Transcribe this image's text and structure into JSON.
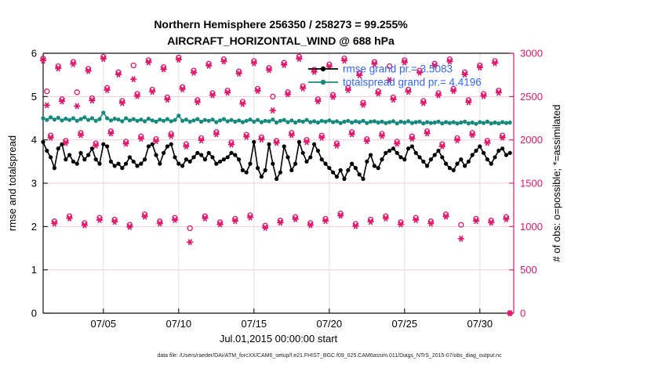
{
  "header": {
    "title_line1": "Northern Hemisphere 256350 / 258273 = 99.255%",
    "title_line2": "AIRCRAFT_HORIZONTAL_WIND @ 688 hPa"
  },
  "footer": {
    "data_file_note": "data file: /Users/raeder/DAI/ATM_forcXX/CAM6_setup/f.e21.FHIST_BGC.f09_025.CAM6assim.011/Diags_NTrS_2015-07/obs_diag_output.nc"
  },
  "colors": {
    "obs_magenta": "#e3146a",
    "spread_teal": "#148a7e",
    "rmse_black": "#000000",
    "legend_text_blue": "#3366ff",
    "grid_vertical": "#dedede",
    "grid_horizontal": "#f4cbd7",
    "axis_black": "#111111"
  },
  "chart_data": {
    "type": "line",
    "title": "Northern Hemisphere 256350 / 258273 = 99.255%",
    "subtitle": "AIRCRAFT_HORIZONTAL_WIND @ 688 hPa",
    "xlabel": "Jul.01,2015 00:00:00 start",
    "ylabel_left": "rmse and totalspread",
    "ylabel_right": "# of obs: o=possible; *=assimilated",
    "ylim_left": [
      0,
      6
    ],
    "ylim_right": [
      0,
      3000
    ],
    "yticks_left": [
      "0",
      "1",
      "2",
      "3",
      "4",
      "5",
      "6"
    ],
    "yticks_left_values": [
      0,
      1,
      2,
      3,
      4,
      5,
      6
    ],
    "yticks_right": [
      "0",
      "500",
      "1000",
      "1500",
      "2000",
      "2500",
      "3000"
    ],
    "yticks_right_values": [
      0,
      500,
      1000,
      1500,
      2000,
      2500,
      3000
    ],
    "xtick_labels": [
      "07/05",
      "07/10",
      "07/15",
      "07/20",
      "07/25",
      "07/30"
    ],
    "xtick_days": [
      5,
      10,
      15,
      20,
      25,
      30
    ],
    "x_range_days": [
      1,
      32.25
    ],
    "x_start_day": 1,
    "x_step_days": 0.25,
    "grid": true,
    "legend_position": "upper-right-inside",
    "legend": [
      {
        "series": "rmse",
        "label": "rmse grand pr.= 3.5083"
      },
      {
        "series": "totalspread",
        "label": "totalspread grand pr.= 4.4196"
      }
    ],
    "series": [
      {
        "name": "rmse",
        "axis": "left",
        "marker": "dot",
        "line": true,
        "values": [
          3.95,
          3.75,
          3.6,
          3.35,
          3.8,
          3.9,
          3.55,
          3.65,
          3.5,
          3.45,
          3.7,
          3.55,
          3.65,
          3.8,
          3.55,
          3.45,
          3.9,
          3.85,
          3.5,
          3.4,
          3.45,
          3.35,
          3.45,
          3.6,
          3.5,
          3.4,
          3.45,
          3.55,
          3.85,
          3.9,
          3.65,
          3.45,
          3.7,
          3.85,
          3.9,
          3.6,
          3.45,
          3.4,
          3.55,
          3.5,
          3.6,
          3.7,
          3.65,
          3.55,
          3.7,
          3.6,
          3.45,
          3.5,
          3.55,
          3.6,
          3.7,
          3.65,
          3.55,
          3.3,
          3.25,
          3.45,
          3.95,
          3.35,
          3.15,
          3.3,
          3.9,
          3.45,
          3.1,
          3.25,
          3.85,
          3.6,
          3.3,
          3.45,
          3.95,
          3.7,
          3.5,
          3.6,
          3.9,
          3.75,
          3.55,
          3.45,
          3.35,
          3.25,
          3.15,
          3.3,
          3.1,
          3.3,
          3.45,
          3.35,
          3.2,
          3.1,
          3.5,
          3.65,
          3.4,
          3.35,
          3.55,
          3.7,
          3.75,
          3.8,
          3.7,
          3.6,
          3.55,
          3.8,
          3.85,
          3.7,
          3.6,
          3.5,
          3.4,
          3.55,
          3.65,
          3.75,
          3.6,
          3.45,
          3.35,
          3.3,
          3.45,
          3.55,
          3.4,
          3.5,
          3.65,
          3.75,
          3.85,
          3.7,
          3.55,
          3.45,
          3.6,
          3.75,
          3.8,
          3.65,
          3.7
        ]
      },
      {
        "name": "totalspread",
        "axis": "left",
        "marker": "dot",
        "line": true,
        "values": [
          4.5,
          4.46,
          4.52,
          4.47,
          4.51,
          4.45,
          4.49,
          4.46,
          4.5,
          4.44,
          4.48,
          4.52,
          4.46,
          4.5,
          4.44,
          4.48,
          4.63,
          4.5,
          4.45,
          4.49,
          4.47,
          4.43,
          4.5,
          4.45,
          4.48,
          4.44,
          4.47,
          4.43,
          4.49,
          4.45,
          4.42,
          4.47,
          4.44,
          4.48,
          4.43,
          4.46,
          4.56,
          4.44,
          4.47,
          4.42,
          4.45,
          4.48,
          4.42,
          4.46,
          4.44,
          4.47,
          4.41,
          4.45,
          4.48,
          4.43,
          4.46,
          4.42,
          4.45,
          4.41,
          4.44,
          4.47,
          4.42,
          4.46,
          4.41,
          4.44,
          4.43,
          4.47,
          4.4,
          4.44,
          4.46,
          4.41,
          4.45,
          4.4,
          4.44,
          4.42,
          4.46,
          4.41,
          4.43,
          4.4,
          4.44,
          4.42,
          4.45,
          4.41,
          4.43,
          4.39,
          4.42,
          4.44,
          4.4,
          4.43,
          4.41,
          4.44,
          4.39,
          4.42,
          4.43,
          4.4,
          4.42,
          4.39,
          4.41,
          4.43,
          4.38,
          4.42,
          4.4,
          4.43,
          4.39,
          4.41,
          4.42,
          4.38,
          4.41,
          4.39,
          4.4,
          4.42,
          4.38,
          4.41,
          4.39,
          4.41,
          4.38,
          4.4,
          4.42,
          4.38,
          4.4,
          4.37,
          4.41,
          4.39,
          4.42,
          4.38,
          4.4,
          4.38,
          4.41,
          4.39,
          4.4
        ]
      },
      {
        "name": "possible",
        "axis": "right",
        "marker": "circle",
        "line": false,
        "values": [
          2940,
          2560,
          2050,
          1060,
          2850,
          2470,
          1990,
          1120,
          2900,
          2550,
          2080,
          1040,
          2820,
          2480,
          1960,
          1100,
          2960,
          2600,
          2100,
          1080,
          2780,
          2450,
          1980,
          1020,
          2860,
          2530,
          2040,
          1140,
          2920,
          2580,
          2010,
          1060,
          2840,
          2490,
          2070,
          1100,
          2950,
          2610,
          1950,
          980,
          2800,
          2460,
          2020,
          1120,
          2880,
          2540,
          2090,
          1050,
          2930,
          2570,
          1970,
          1090,
          2790,
          2440,
          2060,
          1130,
          2910,
          2590,
          2030,
          1010,
          2830,
          2500,
          1990,
          1070,
          2890,
          2550,
          2080,
          1110,
          2960,
          2620,
          2000,
          1040,
          2810,
          2470,
          2050,
          1090,
          2870,
          2520,
          1960,
          1150,
          2940,
          2600,
          2090,
          1030,
          2770,
          2430,
          2010,
          1080,
          2900,
          2560,
          2070,
          1120,
          2850,
          2490,
          1980,
          1050,
          2920,
          2580,
          2040,
          1100,
          2800,
          2450,
          2100,
          1060,
          2880,
          2540,
          1950,
          1140,
          2930,
          2590,
          2020,
          1020,
          2780,
          2460,
          2080,
          1090,
          2860,
          2530,
          1990,
          1070,
          2910,
          2570,
          2050,
          1110,
          0
        ]
      },
      {
        "name": "assimilated",
        "axis": "right",
        "marker": "asterisk",
        "line": false,
        "values": [
          2915,
          2400,
          2025,
          1035,
          2825,
          2445,
          1965,
          1095,
          2875,
          2390,
          2055,
          1015,
          2795,
          2455,
          1935,
          1075,
          2935,
          2575,
          2075,
          1055,
          2755,
          2425,
          1955,
          995,
          2700,
          2505,
          2015,
          1115,
          2895,
          2555,
          1985,
          1035,
          2815,
          2465,
          2045,
          1075,
          2925,
          2585,
          1925,
          820,
          2775,
          2435,
          1995,
          1095,
          2855,
          2515,
          2065,
          1025,
          2905,
          2545,
          1945,
          1065,
          2765,
          2415,
          2035,
          1105,
          2885,
          2565,
          2005,
          985,
          2805,
          2340,
          1965,
          1045,
          2865,
          2525,
          2055,
          1085,
          2935,
          2595,
          1975,
          1015,
          2785,
          2445,
          2025,
          1065,
          2845,
          2495,
          1935,
          1125,
          2915,
          2575,
          2065,
          1005,
          2745,
          2405,
          1985,
          1055,
          2875,
          2535,
          2045,
          1095,
          2690,
          2465,
          1955,
          1025,
          2895,
          2555,
          2015,
          1075,
          2775,
          2425,
          2075,
          1035,
          2855,
          2515,
          1925,
          1115,
          2905,
          2565,
          1995,
          860,
          2755,
          2435,
          2055,
          1065,
          2835,
          2505,
          1965,
          1045,
          2885,
          2545,
          2025,
          1085,
          0
        ]
      }
    ]
  }
}
